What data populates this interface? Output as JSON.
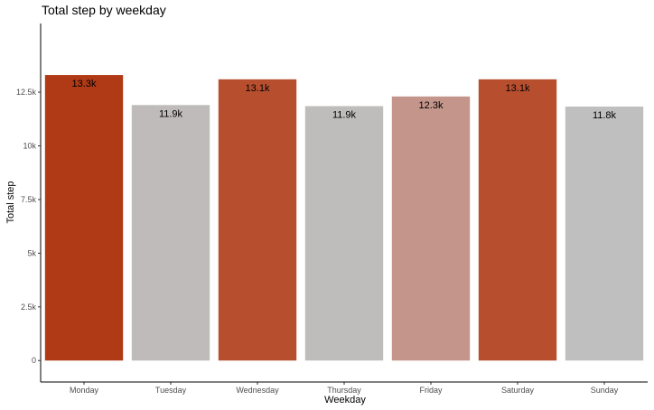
{
  "chart_data": {
    "type": "bar",
    "title": "Total step by weekday",
    "xlabel": "Weekday",
    "ylabel": "Total step",
    "categories": [
      "Monday",
      "Tuesday",
      "Wednesday",
      "Thursday",
      "Friday",
      "Saturday",
      "Sunday"
    ],
    "values": [
      13300,
      11900,
      13100,
      11850,
      12300,
      13100,
      11830
    ],
    "data_labels": [
      "13.3k",
      "11.9k",
      "13.1k",
      "11.9k",
      "12.3k",
      "13.1k",
      "11.8k"
    ],
    "colors": [
      "#b03a16",
      "#bfbbba",
      "#b74f2f",
      "#bebdbc",
      "#c4958a",
      "#b74f2f",
      "#bfbfbf"
    ],
    "ylim": [
      -1000,
      15700
    ],
    "yticks": [
      0,
      2500,
      5000,
      7500,
      10000,
      12500
    ],
    "ytick_labels": [
      "0",
      "2.5k",
      "5k",
      "7.5k",
      "10k",
      "12.5k"
    ],
    "grid": false,
    "legend": "none"
  }
}
